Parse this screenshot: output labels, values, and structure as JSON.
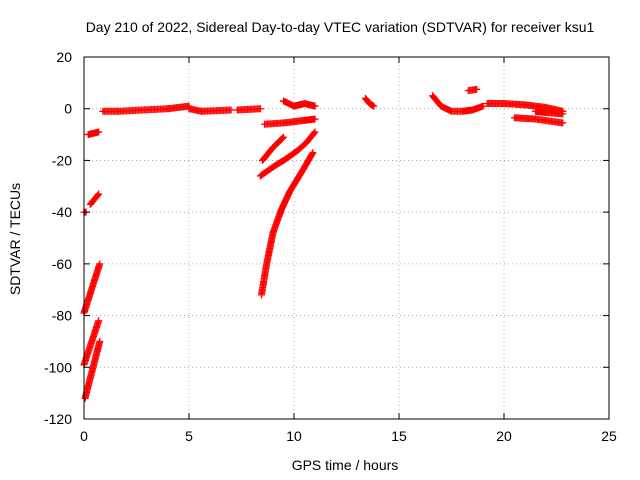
{
  "chart_data": {
    "type": "scatter",
    "title": "Day 210 of 2022, Sidereal Day-to-day VTEC variation (SDTVAR) for receiver ksu1",
    "xlabel": "GPS time / hours",
    "ylabel": "SDTVAR / TECUs",
    "xlim": [
      0,
      25
    ],
    "ylim": [
      -120,
      20
    ],
    "xticks": [
      0,
      5,
      10,
      15,
      20,
      25
    ],
    "yticks": [
      -120,
      -100,
      -80,
      -60,
      -40,
      -20,
      0,
      20
    ],
    "grid": true,
    "legend": "none",
    "colors": {
      "series": "#ff0000",
      "grid": "#999999",
      "axis": "#000000"
    },
    "segments": [
      {
        "name": "near-zero-1",
        "x": [
          0.9,
          1.6
        ],
        "y": [
          -1,
          -1
        ]
      },
      {
        "name": "near-zero-2",
        "x": [
          1.6,
          4.0
        ],
        "y": [
          -1,
          0
        ]
      },
      {
        "name": "near-zero-3",
        "x": [
          4.0,
          5.0
        ],
        "y": [
          0,
          1
        ]
      },
      {
        "name": "near-zero-4",
        "x": [
          5.0,
          5.6
        ],
        "y": [
          0,
          -1
        ]
      },
      {
        "name": "near-zero-5",
        "x": [
          5.6,
          7.0
        ],
        "y": [
          -1,
          -0.5
        ]
      },
      {
        "name": "near-zero-6",
        "x": [
          7.3,
          8.4
        ],
        "y": [
          -0.5,
          0
        ]
      },
      {
        "name": "early-1",
        "x": [
          0.2,
          0.7
        ],
        "y": [
          -10,
          -9
        ]
      },
      {
        "name": "early-2",
        "x": [
          0.3,
          0.7
        ],
        "y": [
          -37,
          -33
        ]
      },
      {
        "name": "early-3",
        "x": [
          0.0,
          0.1
        ],
        "y": [
          -40,
          -40
        ]
      },
      {
        "name": "early-4",
        "x": [
          0.0,
          0.75
        ],
        "y": [
          -79,
          -60
        ]
      },
      {
        "name": "early-5",
        "x": [
          0.0,
          0.7
        ],
        "y": [
          -99,
          -82
        ]
      },
      {
        "name": "early-6",
        "x": [
          0.05,
          0.75
        ],
        "y": [
          -112,
          -90
        ]
      },
      {
        "name": "arc-1",
        "x": [
          8.4,
          9.1,
          9.6,
          10.2,
          10.6,
          11.0
        ],
        "y": [
          -26,
          -22,
          -19.5,
          -16,
          -13,
          -9
        ]
      },
      {
        "name": "arc-2",
        "x": [
          8.45,
          8.7,
          9.0,
          9.4,
          9.8,
          10.4,
          10.9
        ],
        "y": [
          -72,
          -60,
          -48,
          -39,
          -32,
          -24,
          -17
        ]
      },
      {
        "name": "arc-3",
        "x": [
          8.5,
          9.0,
          9.5
        ],
        "y": [
          -20,
          -15,
          -11
        ]
      },
      {
        "name": "arc-4",
        "x": [
          8.6,
          9.5,
          10.5,
          11.0
        ],
        "y": [
          -6,
          -5.5,
          -4.5,
          -4
        ]
      },
      {
        "name": "blob-10h",
        "x": [
          9.5,
          10.0,
          10.5,
          11.0
        ],
        "y": [
          3,
          1,
          2,
          1
        ]
      },
      {
        "name": "blob-13h",
        "x": [
          13.4,
          13.6,
          13.8
        ],
        "y": [
          4,
          2,
          1
        ]
      },
      {
        "name": "late-1",
        "x": [
          16.6,
          17.0,
          17.5,
          18.0,
          18.5,
          19.0
        ],
        "y": [
          5,
          1,
          -1,
          -1,
          -0.5,
          1
        ]
      },
      {
        "name": "late-2",
        "x": [
          18.3,
          18.7
        ],
        "y": [
          7,
          7.5
        ]
      },
      {
        "name": "late-3",
        "x": [
          19.2,
          20.0,
          21.0,
          22.0,
          22.8
        ],
        "y": [
          2,
          2,
          1.5,
          0.5,
          -1
        ]
      },
      {
        "name": "late-4",
        "x": [
          20.5,
          21.5,
          22.8
        ],
        "y": [
          -3.5,
          -4,
          -5.5
        ]
      },
      {
        "name": "late-5",
        "x": [
          21.5,
          22.0,
          22.8
        ],
        "y": [
          -1,
          -1.5,
          -2
        ]
      }
    ]
  }
}
